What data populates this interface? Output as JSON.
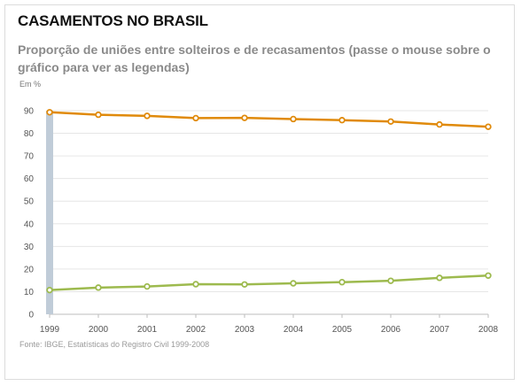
{
  "header": {
    "title": "CASAMENTOS NO BRASIL",
    "subtitle": "Proporção de uniões entre solteiros e de recasamentos (passe o mouse sobre o gráfico para ver as legendas)",
    "unit_label": "Em %"
  },
  "footer": {
    "source": "Fonte: IBGE, Estatísticas do Registro Civil 1999-2008"
  },
  "chart_data": {
    "type": "line",
    "title": "CASAMENTOS NO BRASIL",
    "subtitle": "Proporção de uniões entre solteiros e de recasamentos (passe o mouse sobre o gráfico para ver as legendas)",
    "ylabel": "Em %",
    "xlabel": "",
    "x": [
      "1999",
      "2000",
      "2001",
      "2002",
      "2003",
      "2004",
      "2005",
      "2006",
      "2007",
      "2008"
    ],
    "ylim": [
      0,
      90
    ],
    "yticks": [
      0,
      10,
      20,
      30,
      40,
      50,
      60,
      70,
      80,
      90
    ],
    "grid": true,
    "legend": "none",
    "series": [
      {
        "color": "#e08a0b",
        "values": [
          89.3,
          88.2,
          87.7,
          86.7,
          86.8,
          86.3,
          85.8,
          85.2,
          83.9,
          82.9
        ]
      },
      {
        "color": "#9dba4e",
        "values": [
          10.7,
          11.8,
          12.3,
          13.3,
          13.2,
          13.7,
          14.2,
          14.8,
          16.1,
          17.1
        ]
      }
    ],
    "highlight_color": "#c0ccd8"
  }
}
